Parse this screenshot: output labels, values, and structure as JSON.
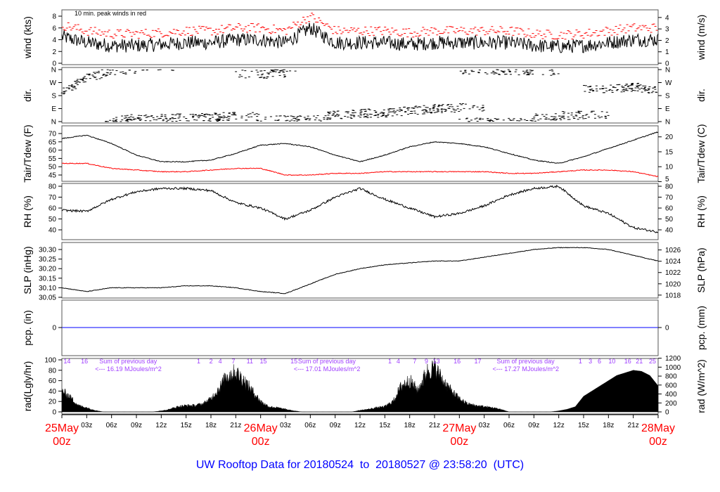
{
  "title": "UW Rooftop Data for 20180524  to  20180527 @ 23:58:20  (UTC)",
  "colors": {
    "peak": "#ff0000",
    "dew": "#ff0000",
    "pcp": "#0000ff",
    "title": "#0000ff",
    "date": "#ff0000",
    "rad_note": "#a040ff"
  },
  "time_axis": {
    "hours_range": [
      0,
      72
    ],
    "hour_labels": [
      "03z",
      "06z",
      "09z",
      "12z",
      "15z",
      "18z",
      "21z"
    ],
    "dates": [
      {
        "day": "25May",
        "hour": "00z",
        "t": 0
      },
      {
        "day": "26May",
        "hour": "00z",
        "t": 24
      },
      {
        "day": "27May",
        "hour": "00z",
        "t": 48
      },
      {
        "day": "28May",
        "hour": "00z",
        "t": 72
      }
    ]
  },
  "chart_data": [
    {
      "id": "wind",
      "type": "line",
      "ylabel": "wind (kts)",
      "ylabel_right": "wind (m/s)",
      "annotation": "10 min. peak winds in red",
      "yticks": [
        "0",
        "2",
        "4",
        "6",
        "8"
      ],
      "yticks_right": [
        "0",
        "1",
        "2",
        "3",
        "4"
      ],
      "t_step": 3,
      "values": [
        4.5,
        3.5,
        3,
        3,
        3.2,
        3.5,
        3.5,
        4,
        4,
        3.5,
        6,
        3.5,
        3.5,
        3.5,
        3.2,
        3.5,
        3.5,
        3.5,
        3.5,
        3,
        2.8,
        3,
        3.5,
        4,
        4
      ],
      "peak_offset": 2
    },
    {
      "id": "dir",
      "type": "scatter",
      "ylabel": "dir.",
      "ylabel_right": "dir.",
      "yticks": [
        "N",
        "E",
        "S",
        "W",
        "N"
      ],
      "yticks_right": [
        "N",
        "E",
        "S",
        "W",
        "N"
      ],
      "t_step": 3,
      "values": [
        200,
        300,
        350,
        20,
        20,
        25,
        30,
        35,
        330,
        10,
        15,
        45,
        55,
        60,
        75,
        90,
        95,
        355,
        355,
        350,
        40,
        45,
        230,
        240,
        220
      ]
    },
    {
      "id": "temp",
      "type": "line",
      "ylabel": "Tair/Tdew (F)",
      "ylabel_right": "Tair/Tdew (C)",
      "yticks": [
        "45",
        "50",
        "55",
        "60",
        "65",
        "70"
      ],
      "yticks_right": [
        "5",
        "10",
        "15",
        "20"
      ],
      "t_step": 3,
      "series": [
        {
          "name": "Tair",
          "values": [
            67,
            69,
            64,
            57,
            53,
            53,
            54,
            58,
            63,
            64,
            62,
            57,
            53,
            57,
            62,
            65,
            64,
            62,
            58,
            54,
            52,
            56,
            61,
            66,
            71
          ]
        },
        {
          "name": "Tdew",
          "values": [
            52,
            52,
            49,
            48,
            47,
            47,
            48,
            49,
            49,
            45,
            45,
            46,
            46,
            47,
            47,
            47,
            47,
            47,
            46,
            46,
            47,
            48,
            48,
            47,
            44
          ]
        }
      ]
    },
    {
      "id": "rh",
      "type": "line",
      "ylabel": "RH (%)",
      "ylabel_right": "RH (%)",
      "yticks": [
        "40",
        "50",
        "60",
        "70",
        "80"
      ],
      "yticks_right": [
        "40",
        "50",
        "60",
        "70",
        "80"
      ],
      "t_step": 3,
      "values": [
        58,
        57,
        68,
        75,
        78,
        78,
        76,
        65,
        60,
        50,
        58,
        70,
        78,
        68,
        60,
        52,
        55,
        62,
        72,
        78,
        80,
        62,
        55,
        42,
        38
      ]
    },
    {
      "id": "slp",
      "type": "line",
      "ylabel": "SLP (inHg)",
      "ylabel_right": "SLP (hPa)",
      "yticks": [
        "30.05",
        "30.10",
        "30.15",
        "30.20",
        "30.25",
        "30.30"
      ],
      "yticks_right": [
        "1018",
        "1020",
        "1022",
        "1024",
        "1026"
      ],
      "t_step": 3,
      "values": [
        30.1,
        30.08,
        30.1,
        30.1,
        30.1,
        30.11,
        30.11,
        30.1,
        30.08,
        30.07,
        30.12,
        30.17,
        30.2,
        30.22,
        30.23,
        30.24,
        30.24,
        30.26,
        30.28,
        30.3,
        30.31,
        30.31,
        30.3,
        30.27,
        30.24
      ]
    },
    {
      "id": "pcp",
      "type": "line",
      "ylabel": "pcp. (in)",
      "ylabel_right": "pcp. (mm)",
      "yticks": [
        "0"
      ],
      "yticks_right": [
        "0"
      ],
      "t_step": 72,
      "values": [
        0,
        0
      ]
    },
    {
      "id": "rad",
      "type": "area",
      "ylabel": "rad(Lgly/hr)",
      "ylabel_right": "rad (W/m^2)",
      "yticks": [
        "0",
        "20",
        "40",
        "60",
        "80",
        "100"
      ],
      "yticks_right": [
        "0",
        "200",
        "400",
        "600",
        "800",
        "1000",
        "1200"
      ],
      "t_step": 1,
      "values": [
        40,
        28,
        12,
        8,
        3,
        0,
        0,
        0,
        0,
        0,
        0,
        0,
        2,
        5,
        10,
        12,
        12,
        15,
        25,
        45,
        70,
        75,
        60,
        40,
        20,
        10,
        8,
        5,
        2,
        0,
        0,
        0,
        0,
        0,
        0,
        0,
        3,
        5,
        8,
        10,
        20,
        50,
        60,
        40,
        75,
        85,
        60,
        40,
        25,
        15,
        12,
        10,
        8,
        5,
        0,
        0,
        0,
        0,
        0,
        0,
        2,
        5,
        10,
        30,
        40,
        50,
        60,
        70,
        75,
        80,
        78,
        70,
        50
      ],
      "notes": [
        {
          "text": "Sum of previous day",
          "sub": "<--- 16.19 MJoules/m^2",
          "t": 3.5
        },
        {
          "text": "Sum of previous day",
          "sub": "<--- 17.01 MJoules/m^2",
          "t": 27.5
        },
        {
          "text": "Sum of previous day",
          "sub": "<--- 17.27 MJoules/m^2",
          "t": 51.5
        }
      ],
      "hour_marks": [
        {
          "text": "14",
          "t": 0.2
        },
        {
          "text": "16",
          "t": 2.3
        },
        {
          "text": "1",
          "t": 16.3
        },
        {
          "text": "2",
          "t": 17.8
        },
        {
          "text": "4",
          "t": 18.9
        },
        {
          "text": "7",
          "t": 20.5
        },
        {
          "text": "11",
          "t": 22.3
        },
        {
          "text": "15",
          "t": 23.9
        },
        {
          "text": "15",
          "t": 27.6
        },
        {
          "text": "1",
          "t": 39.4
        },
        {
          "text": "4",
          "t": 40.4
        },
        {
          "text": "7",
          "t": 42.4
        },
        {
          "text": "9",
          "t": 43.8
        },
        {
          "text": "13",
          "t": 44.8
        },
        {
          "text": "16",
          "t": 47.3
        },
        {
          "text": "17",
          "t": 49.8
        },
        {
          "text": "1",
          "t": 62.4
        },
        {
          "text": "3",
          "t": 63.6
        },
        {
          "text": "6",
          "t": 64.7
        },
        {
          "text": "10",
          "t": 66.0
        },
        {
          "text": "16",
          "t": 67.9
        },
        {
          "text": "21",
          "t": 69.3
        },
        {
          "text": "25",
          "t": 70.9
        }
      ]
    }
  ]
}
